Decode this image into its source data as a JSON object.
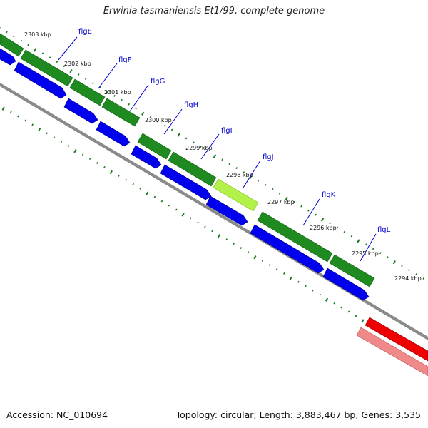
{
  "title": "Erwinia tasmaniensis Et1/99, complete genome",
  "footer": {
    "accession": "Accession: NC_010694",
    "summary": "Topology: circular; Length: 3,883,467 bp; Genes: 3,535"
  },
  "colors": {
    "cds": "#1f8a1f",
    "cds_highlight": "#b4f04a",
    "gene_arrow": "#0000ee",
    "backbone": "#888888",
    "rrna_dark": "#ee0000",
    "rrna_light": "#f08a8a",
    "tick": "#1a7a1a",
    "gene_label": "#0000cc"
  },
  "kbp_labels": [
    "2303 kbp",
    "2302 kbp",
    "2301 kbp",
    "2300 kbp",
    "2299 kbp",
    "2298 kbp",
    "2297 kbp",
    "2296 kbp",
    "2295 kbp",
    "2294 kbp"
  ],
  "gene_labels": [
    "flgE",
    "flgF",
    "flgG",
    "flgH",
    "flgI",
    "flgJ",
    "flgK",
    "flgL"
  ]
}
